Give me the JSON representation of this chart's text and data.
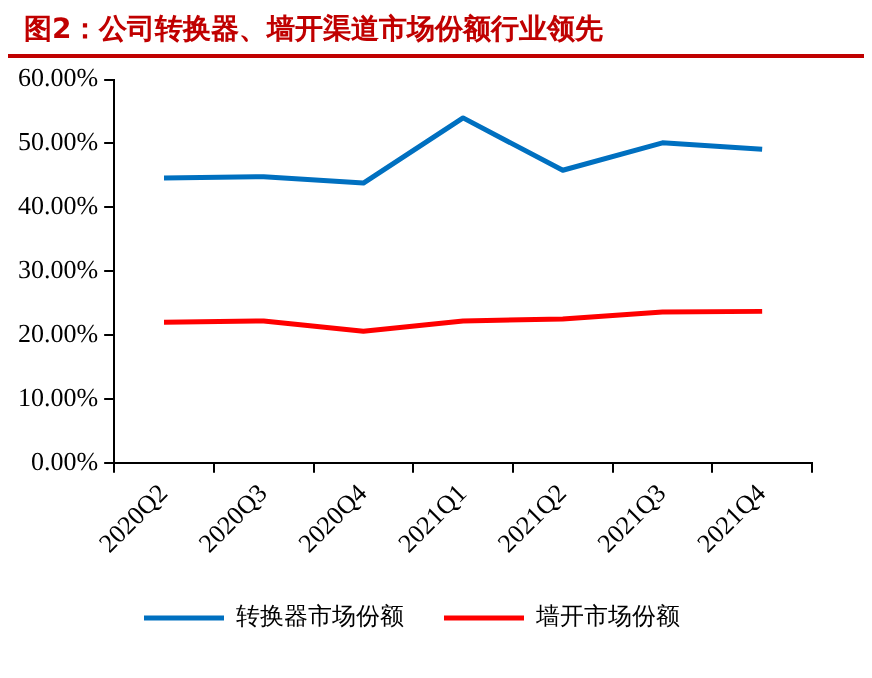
{
  "chart_data": {
    "type": "line",
    "title": "图2：公司转换器、墙开渠道市场份额行业领先",
    "categories": [
      "2020Q2",
      "2020Q3",
      "2020Q4",
      "2021Q1",
      "2021Q2",
      "2021Q3",
      "2021Q4"
    ],
    "series": [
      {
        "name": "转换器市场份额",
        "color": "#0070c0",
        "values": [
          44.6,
          44.8,
          43.8,
          54.0,
          45.8,
          50.1,
          49.1
        ]
      },
      {
        "name": "墙开市场份额",
        "color": "#ff0000",
        "values": [
          22.0,
          22.2,
          20.6,
          22.2,
          22.5,
          23.6,
          23.7
        ]
      }
    ],
    "ylim": [
      0,
      60
    ],
    "yticks": [
      {
        "value": 0,
        "label": "0.00%"
      },
      {
        "value": 10,
        "label": "10.00%"
      },
      {
        "value": 20,
        "label": "20.00%"
      },
      {
        "value": 30,
        "label": "30.00%"
      },
      {
        "value": 40,
        "label": "40.00%"
      },
      {
        "value": 50,
        "label": "50.00%"
      },
      {
        "value": 60,
        "label": "60.00%"
      }
    ],
    "grid": false,
    "legend": "bottom",
    "marker": "none",
    "line_style": "solid"
  }
}
